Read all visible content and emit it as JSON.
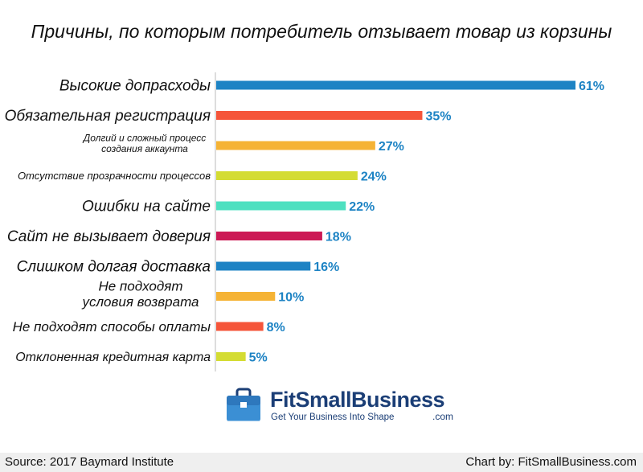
{
  "chart_data": {
    "type": "bar",
    "orientation": "horizontal",
    "title": "Причины, по которым потребитель отзывает товар из корзины",
    "categories": [
      "Высокие допрасходы",
      "Обязательная регистрация",
      "Долгий и сложный процесс создания аккаунта",
      "Отсутствие прозрачности процессов",
      "Ошибки на сайте",
      "Сайт не вызывает доверия",
      "Слишком долгая доставка",
      "Не подходят условия возврата",
      "Не подходят способы оплаты",
      "Отклоненная кредитная карта"
    ],
    "category_lines": [
      [
        "Высокие допрасходы"
      ],
      [
        "Обязательная регистрация"
      ],
      [
        "Долгий и сложный процесс",
        "создания аккаунта"
      ],
      [
        "Отсутствие прозрачности процессов"
      ],
      [
        "Ошибки на сайте"
      ],
      [
        "Сайт не вызывает доверия"
      ],
      [
        "Слишком долгая доставка"
      ],
      [
        "Не подходят",
        "условия возврата"
      ],
      [
        "Не подходят способы оплаты"
      ],
      [
        "Отклоненная кредитная карта"
      ]
    ],
    "values": [
      61,
      35,
      27,
      24,
      22,
      18,
      16,
      10,
      8,
      5
    ],
    "value_labels": [
      "61%",
      "35%",
      "27%",
      "24%",
      "22%",
      "18%",
      "16%",
      "10%",
      "8%",
      "5%"
    ],
    "colors": [
      "#1d83c4",
      "#f5553a",
      "#f5b335",
      "#d4dc33",
      "#4ee0c0",
      "#cc1a55",
      "#1d83c4",
      "#f5b335",
      "#f5553a",
      "#d4dc33"
    ],
    "label_color": "#1d83c4",
    "xlim": [
      0,
      61
    ],
    "grid": false,
    "legend": "none"
  },
  "logo": {
    "name": "FitSmallBusiness",
    "tagline": "Get Your Business Into Shape",
    "suffix": ".com",
    "color": "#1b3e76",
    "icon": "briefcase-icon"
  },
  "footer": {
    "source": "Source: 2017 Baymard Institute",
    "credit": "Chart by: FitSmallBusiness.com"
  }
}
